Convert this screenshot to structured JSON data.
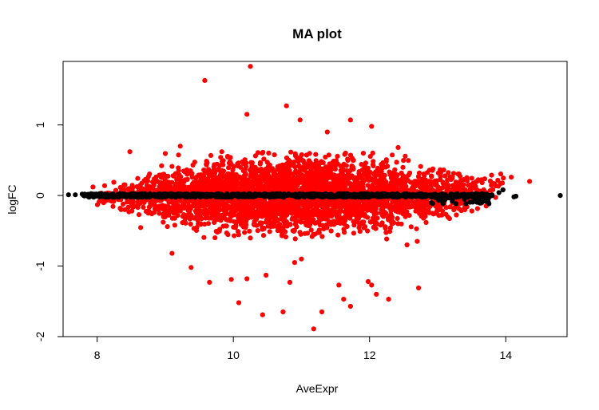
{
  "chart_data": {
    "type": "scatter",
    "title": "MA plot",
    "xlabel": "AveExpr",
    "ylabel": "logFC",
    "xlim": [
      7.5,
      14.9
    ],
    "ylim": [
      -2.0,
      1.9
    ],
    "xticks": [
      8,
      10,
      12,
      14
    ],
    "yticks": [
      -2,
      -1,
      0,
      1
    ],
    "grid": false,
    "legend": "none",
    "series": [
      {
        "color": "#ff0000",
        "role": "differentially expressed",
        "note": "dense cloud of several thousand points centred on logFC 0, widest (approx. -0.5 to 0.5) for AveExpr 10-12, narrowing to approx. +/-0.2 near AveExpr 8 and 13.5",
        "points": [
          [
            10.25,
            1.83
          ],
          [
            9.58,
            1.63
          ],
          [
            10.78,
            1.27
          ],
          [
            10.2,
            1.15
          ],
          [
            10.98,
            1.07
          ],
          [
            11.72,
            1.07
          ],
          [
            12.03,
            0.98
          ],
          [
            11.38,
            0.9
          ],
          [
            9.22,
            0.7
          ],
          [
            12.42,
            0.68
          ],
          [
            8.48,
            0.62
          ],
          [
            9.83,
            0.62
          ],
          [
            14.35,
            0.2
          ],
          [
            14.08,
            0.26
          ],
          [
            9.1,
            -0.82
          ],
          [
            9.38,
            -1.02
          ],
          [
            9.97,
            -1.19
          ],
          [
            9.65,
            -1.23
          ],
          [
            11.98,
            -1.22
          ],
          [
            12.03,
            -1.27
          ],
          [
            10.2,
            -1.18
          ],
          [
            10.48,
            -1.13
          ],
          [
            10.83,
            -1.23
          ],
          [
            11.55,
            -1.27
          ],
          [
            12.1,
            -1.4
          ],
          [
            12.28,
            -1.47
          ],
          [
            12.72,
            -1.31
          ],
          [
            11.62,
            -1.47
          ],
          [
            11.72,
            -1.57
          ],
          [
            11.3,
            -1.65
          ],
          [
            10.73,
            -1.65
          ],
          [
            10.43,
            -1.69
          ],
          [
            10.08,
            -1.52
          ],
          [
            11.18,
            -1.89
          ],
          [
            12.55,
            -0.7
          ],
          [
            12.7,
            -0.65
          ],
          [
            11.0,
            -0.9
          ],
          [
            10.9,
            -0.95
          ],
          [
            8.75,
            -0.25
          ]
        ]
      },
      {
        "color": "#000000",
        "role": "not significant",
        "note": "thin band of points along logFC approx. 0 across the full expression range",
        "points": [
          [
            7.58,
            0.01
          ],
          [
            7.68,
            0.01
          ],
          [
            7.78,
            0.02
          ],
          [
            7.85,
            0.0
          ],
          [
            7.95,
            0.02
          ],
          [
            13.5,
            -0.02
          ],
          [
            13.62,
            0.0
          ],
          [
            13.72,
            -0.04
          ],
          [
            13.8,
            0.01
          ],
          [
            13.9,
            0.04
          ],
          [
            13.96,
            0.08
          ],
          [
            14.12,
            -0.02
          ],
          [
            14.15,
            -0.01
          ],
          [
            14.8,
            0.0
          ]
        ]
      }
    ]
  }
}
